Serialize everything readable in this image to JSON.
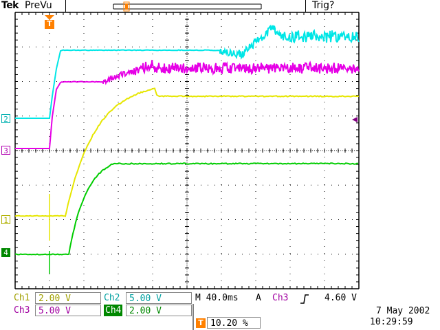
{
  "header": {
    "brand": "Tek",
    "acq_state": "PreVu",
    "trigger_status": "Trig?"
  },
  "markers": {
    "trigger_position_marker": "T",
    "ch1": "1",
    "ch2": "2",
    "ch3": "3",
    "ch4": "4"
  },
  "colors": {
    "ch1": "#e6e600",
    "ch2": "#00e6e6",
    "ch3": "#e600e6",
    "ch4": "#00cc00",
    "trigger_marker": "#ff8000",
    "graticule": "#000000"
  },
  "readouts": {
    "ch1_label": "Ch1",
    "ch1_scale": "2.00 V",
    "ch2_label": "Ch2",
    "ch2_scale": "5.00 V",
    "ch3_label": "Ch3",
    "ch3_scale": "5.00 V",
    "ch4_label": "Ch4",
    "ch4_scale": "2.00 V",
    "timebase": "M 40.0ms",
    "trigger_mode": "A",
    "trigger_source": "Ch3",
    "trigger_slope_icon": "rising-edge-icon",
    "trigger_level": "4.60 V",
    "trigger_position": "10.20 %"
  },
  "timestamp": {
    "date": "7 May 2002",
    "time": "10:29:59"
  }
}
